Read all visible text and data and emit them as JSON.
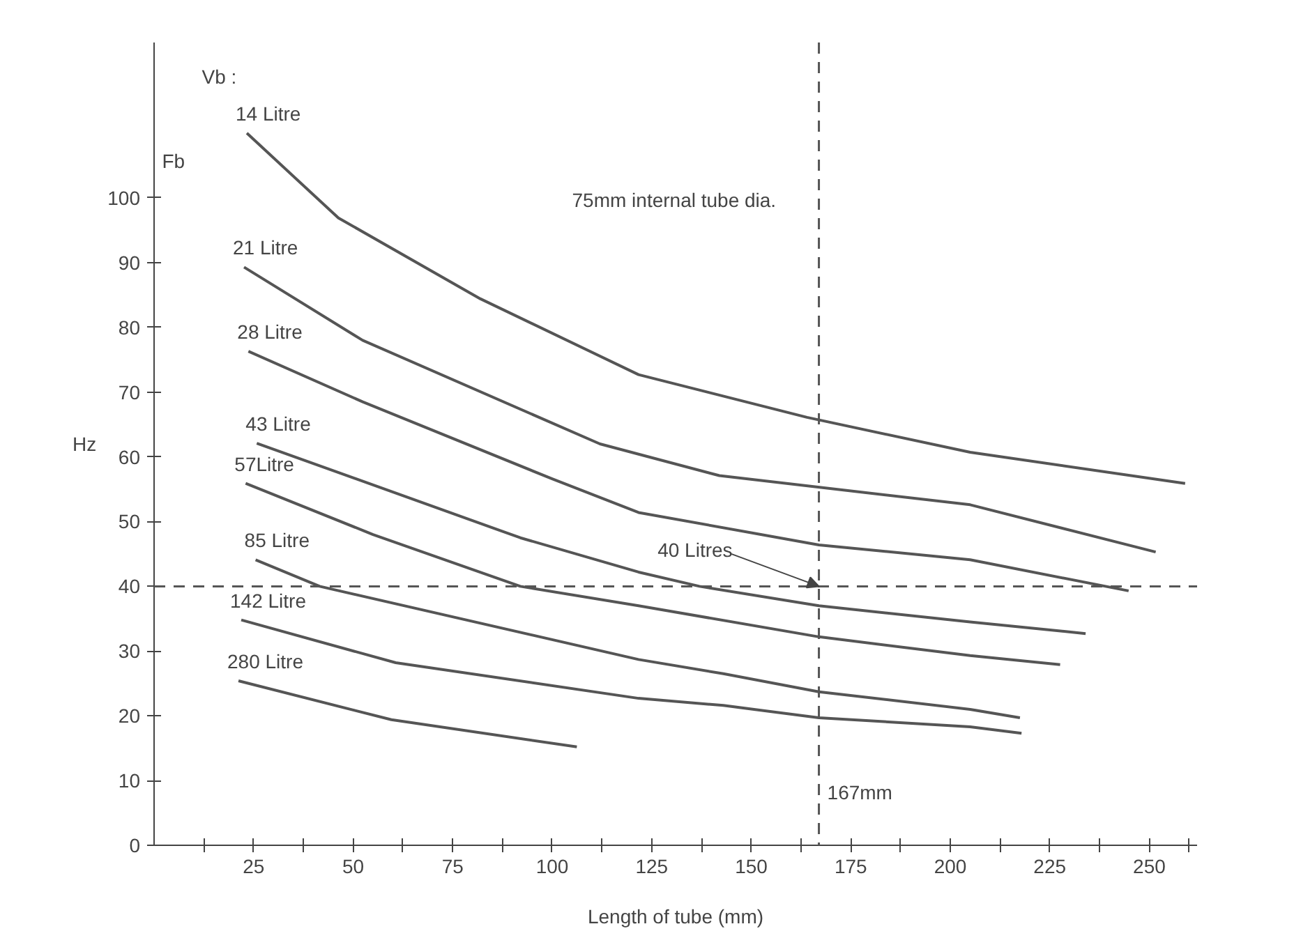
{
  "chart_data": {
    "type": "line",
    "xlabel": "Length of tube (mm)",
    "ylabel": "Hz",
    "xlim": [
      0,
      262
    ],
    "ylim": [
      0,
      124
    ],
    "xticks": [
      {
        "value": 12.5,
        "label": null
      },
      25,
      {
        "value": 37.5,
        "label": null
      },
      50,
      {
        "value": 62.5,
        "label": null
      },
      75,
      {
        "value": 87.5,
        "label": null
      },
      100,
      {
        "value": 112.5,
        "label": null
      },
      125,
      {
        "value": 137.5,
        "label": null
      },
      150,
      {
        "value": 162.5,
        "label": null
      },
      175,
      {
        "value": 187.5,
        "label": null
      },
      200,
      {
        "value": 212.5,
        "label": null
      },
      225,
      {
        "value": 237.5,
        "label": null
      },
      250,
      {
        "value": 260,
        "label": null
      }
    ],
    "yticks": [
      0,
      10,
      20,
      30,
      40,
      50,
      60,
      70,
      80,
      90,
      100
    ],
    "grid": false,
    "marker": "none",
    "line_style": "solid",
    "series": [
      {
        "name": "14 Litre",
        "color": "#555555",
        "x": [
          23.3,
          46.3,
          82,
          121.7,
          164,
          205,
          259
        ],
        "values": [
          110,
          96.9,
          84.4,
          72.7,
          66.1,
          60.7,
          55.9
        ]
      },
      {
        "name": "21 Litre",
        "color": "#555555",
        "x": [
          22.6,
          52.4,
          112,
          142,
          205,
          251.6
        ],
        "values": [
          89.3,
          78,
          62,
          57.1,
          52.6,
          45.3
        ]
      },
      {
        "name": "28 Litre",
        "color": "#555555",
        "x": [
          23.7,
          52.4,
          100,
          121.7,
          167,
          205,
          244.8
        ],
        "values": [
          76.3,
          68.5,
          56.6,
          51.4,
          46.4,
          44.1,
          39.3
        ]
      },
      {
        "name": "43 Litre",
        "color": "#555555",
        "x": [
          25.8,
          92,
          121.7,
          137,
          167,
          205,
          234
        ],
        "values": [
          62.1,
          47.5,
          42.2,
          40,
          37,
          34.5,
          32.7
        ]
      },
      {
        "name": "57Litre",
        "color": "#555555",
        "x": [
          23,
          55,
          92,
          121.7,
          167,
          205,
          227.6
        ],
        "values": [
          55.9,
          48,
          40,
          37,
          32.2,
          29.3,
          27.9
        ]
      },
      {
        "name": "85 Litre",
        "color": "#555555",
        "x": [
          25.5,
          41.6,
          121.7,
          143,
          167,
          205,
          217.5
        ],
        "values": [
          44.1,
          40,
          28.7,
          26.5,
          23.7,
          21,
          19.7
        ]
      },
      {
        "name": "142 Litre",
        "color": "#555555",
        "x": [
          21.9,
          60.7,
          121.7,
          143,
          167,
          205,
          217.9
        ],
        "values": [
          34.8,
          28.2,
          22.7,
          21.6,
          19.7,
          18.3,
          17.3
        ]
      },
      {
        "name": "280 Litre",
        "color": "#555555",
        "x": [
          21.2,
          59.6,
          106.2
        ],
        "values": [
          25.4,
          19.4,
          15.2
        ]
      }
    ],
    "ref_lines": [
      {
        "axis": "y",
        "value": 40,
        "color": "#555555",
        "line_style": "dashed"
      },
      {
        "axis": "x",
        "value": 167,
        "color": "#555555",
        "line_style": "dashed"
      }
    ],
    "annotations": [
      "Vb :",
      "Fb",
      "75mm internal tube dia.",
      {
        "text": "40 Litres",
        "x": 167,
        "y": 40
      },
      {
        "text": "167mm",
        "x": 167,
        "y": 0
      }
    ]
  }
}
